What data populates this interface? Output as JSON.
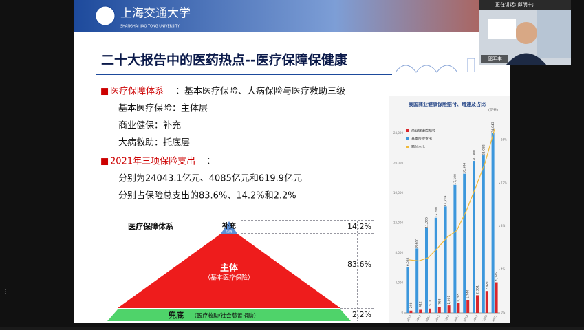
{
  "meeting": {
    "speaking": "正在讲话: 邱明丰;",
    "participant": "邱明丰"
  },
  "slide": {
    "logo_cn": "上海交通大学",
    "logo_en": "SHANGHAI JIAO TONG UNIVERSITY",
    "title": "二十大报告中的医药热点--医疗保障保健康",
    "bullet1": {
      "head": "医疗保障体系",
      "rest": "：基本医疗保险、大病保险与医疗救助三级",
      "items": [
        "基本医疗保险：主体层",
        "商业健保：补充",
        "大病救助：托底层"
      ]
    },
    "bullet2": {
      "head": "2021年三项保险支出",
      "rest": "：",
      "items": [
        "分别为24043.1亿元、4085亿元和619.9亿元",
        "分别占保险总支出的83.6%、14.2%和2.2%"
      ]
    },
    "pyramid": {
      "label": "医疗保障体系",
      "top": "补充",
      "top_sub": "商保",
      "middle": "主体",
      "middle_sub": "（基本医疗保险）",
      "bottom": "兜底",
      "bottom_sub": "（医疗救助/社会慈善捐助）",
      "shares": [
        "14.2%",
        "83.6%",
        "2.2%"
      ]
    }
  },
  "chart_data": {
    "type": "bar",
    "title": "我国商业健康保险赔付、增速及占比",
    "unit": "(亿元)",
    "categories": [
      "2012",
      "2013",
      "2014",
      "2015",
      "2016",
      "2017",
      "2018",
      "2019",
      "2020",
      "2021"
    ],
    "series": [
      {
        "name": "商业健康险赔付",
        "color": "#d9262c",
        "values": [
          298,
          412,
          571,
          763,
          1001,
          1295,
          1744,
          2351,
          2921,
          4085
        ],
        "value_labels": [
          "298",
          "412",
          "571",
          "763",
          "1,001",
          "1,295",
          "1,744",
          "2,351",
          "2,921",
          "4,085"
        ]
      },
      {
        "name": "基本医保支出",
        "color": "#3c97dc",
        "values": [
          6082,
          8600,
          11306,
          12700,
          14209,
          17100,
          18584,
          20300,
          21032,
          24043
        ],
        "value_labels": [
          "6,082",
          "8,600",
          "11,306",
          "12,700",
          "14,209",
          "17,100",
          "18,584",
          "20,300",
          "21,032",
          "24,043"
        ]
      },
      {
        "name": "赔付占比",
        "color": "#f0b93a",
        "axis": "y2",
        "values": [
          4.9,
          4.8,
          5.1,
          6.0,
          7.0,
          7.6,
          9.4,
          11.6,
          13.9,
          17.0
        ]
      }
    ],
    "ylim": [
      0,
      26000
    ],
    "yticks": [
      0,
      {
        "value": 4000,
        "label": "4,000"
      },
      {
        "value": 8000,
        "label": "8,000"
      },
      {
        "value": 12000,
        "label": "12,000"
      },
      {
        "value": 16000,
        "label": "16,000"
      },
      {
        "value": 20000,
        "label": "20,000"
      },
      {
        "value": 24000,
        "label": "24,000"
      }
    ],
    "y2lim": [
      0,
      18
    ],
    "y2ticks": [
      {
        "value": 0,
        "label": "0%"
      },
      {
        "value": 4,
        "label": "4%"
      },
      {
        "value": 8,
        "label": "8%"
      },
      {
        "value": 12,
        "label": "12%"
      },
      {
        "value": 16,
        "label": "16%"
      }
    ]
  }
}
